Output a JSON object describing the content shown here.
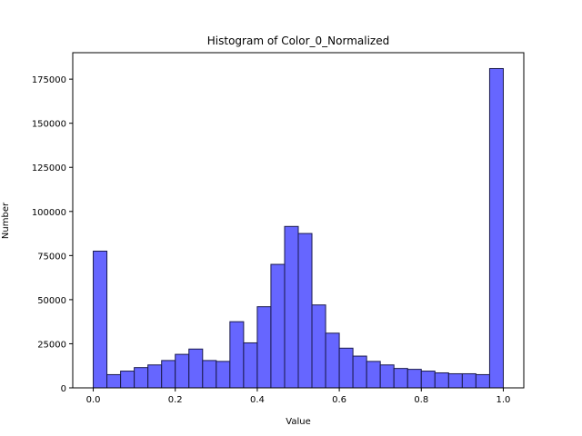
{
  "chart_data": {
    "type": "bar",
    "title": "Histogram of Color_0_Normalized",
    "xlabel": "Value",
    "ylabel": "Number",
    "xlim": [
      -0.05,
      1.05
    ],
    "ylim": [
      0,
      190000
    ],
    "xticks": [
      0.0,
      0.2,
      0.4,
      0.6,
      0.8,
      1.0
    ],
    "xtick_labels": [
      "0.0",
      "0.2",
      "0.4",
      "0.6",
      "0.8",
      "1.0"
    ],
    "yticks": [
      0,
      25000,
      50000,
      75000,
      100000,
      125000,
      150000,
      175000
    ],
    "ytick_labels": [
      "0",
      "25000",
      "50000",
      "75000",
      "100000",
      "125000",
      "150000",
      "175000"
    ],
    "grid": false,
    "bar_color": "#6666ff",
    "edge_color": "#1a1a4d",
    "bin_edges": [
      0.0,
      0.0333,
      0.0667,
      0.1,
      0.1333,
      0.1667,
      0.2,
      0.2333,
      0.2667,
      0.3,
      0.3333,
      0.3667,
      0.4,
      0.4333,
      0.4667,
      0.5,
      0.5333,
      0.5667,
      0.6,
      0.6333,
      0.6667,
      0.7,
      0.7333,
      0.7667,
      0.8,
      0.8333,
      0.8667,
      0.9,
      0.9333,
      0.9667,
      1.0
    ],
    "values": [
      77500,
      7500,
      9500,
      11500,
      13000,
      15500,
      19000,
      22000,
      15500,
      15000,
      37500,
      25500,
      46000,
      70000,
      91500,
      87500,
      47000,
      31000,
      22500,
      18000,
      15000,
      13000,
      11000,
      10500,
      9500,
      8500,
      8000,
      8000,
      7500,
      181000
    ]
  }
}
